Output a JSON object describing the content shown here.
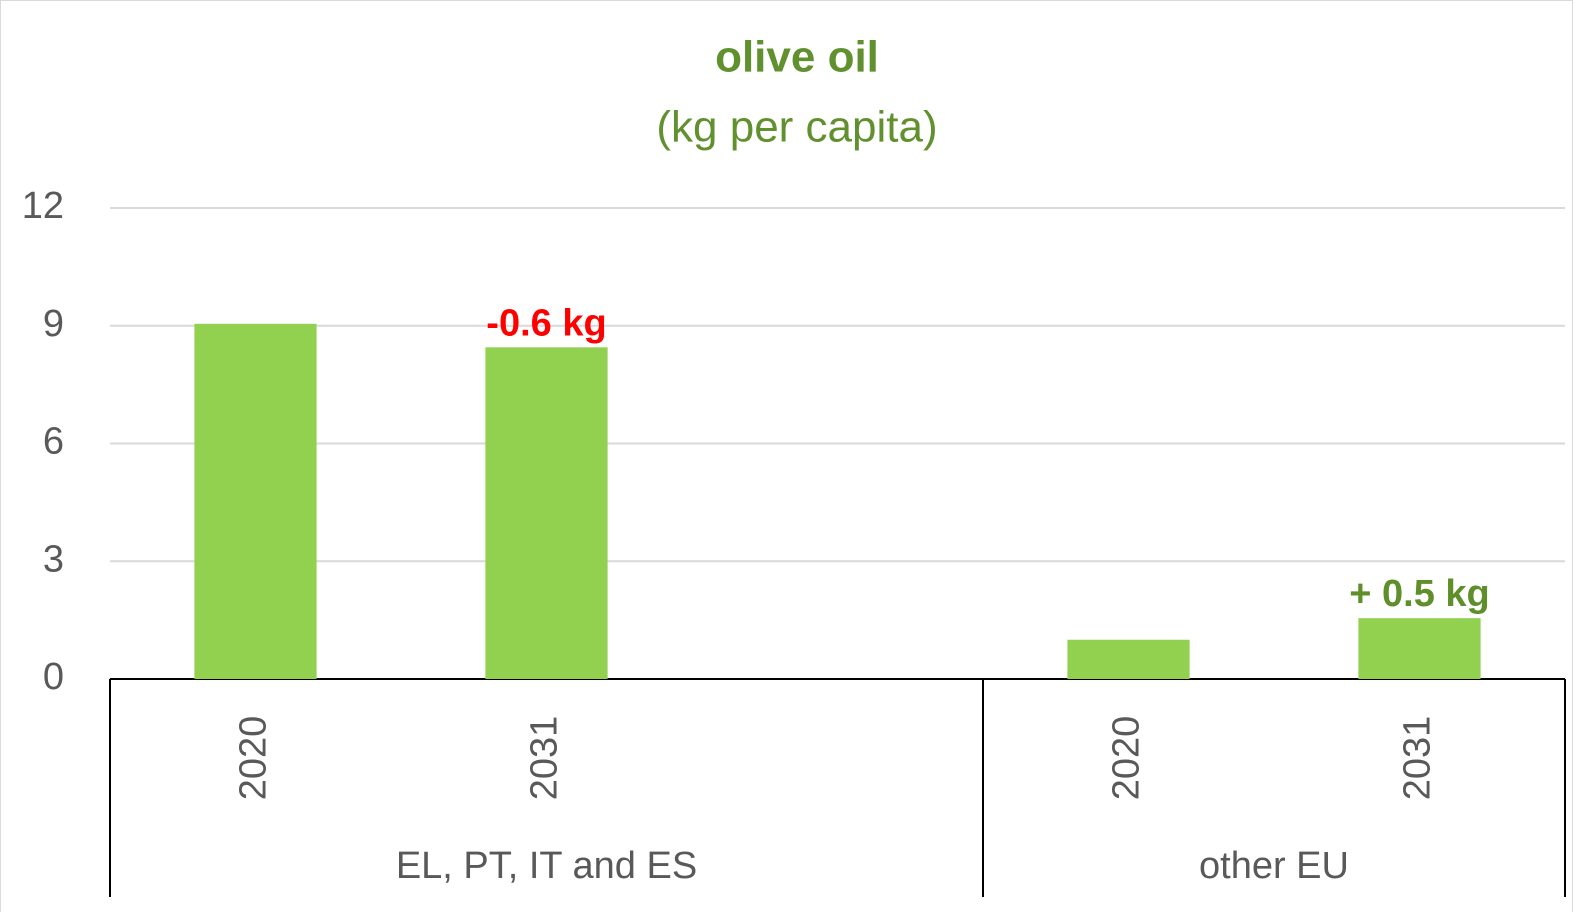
{
  "chart_data": {
    "type": "bar",
    "title": "olive oil",
    "subtitle": "(kg per capita)",
    "color": "#92d050",
    "title_color": "#61902e",
    "ylim": [
      0,
      12
    ],
    "yticks": [
      0,
      3,
      6,
      9,
      12
    ],
    "grid": true,
    "groups": [
      {
        "name": "EL, PT, IT and ES",
        "categories": [
          "2020",
          "2031",
          null
        ],
        "values": [
          9.05,
          8.45,
          null
        ],
        "annotation": "-0.6 kg",
        "annotation_color": "#ff0000"
      },
      {
        "name": "other EU",
        "categories": [
          "2020",
          "2031"
        ],
        "values": [
          1.0,
          1.55
        ],
        "annotation": "+ 0.5 kg",
        "annotation_color": "#5f8f2b"
      }
    ]
  }
}
